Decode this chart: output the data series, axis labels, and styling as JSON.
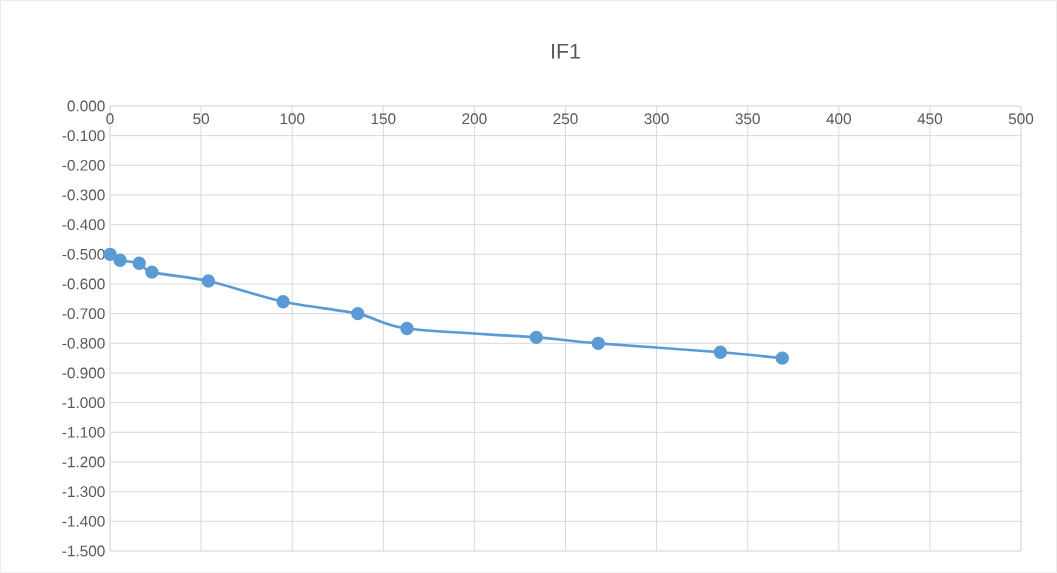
{
  "chart_data": {
    "type": "line",
    "title": "IF1",
    "x": [
      0,
      5.5,
      16,
      23,
      54,
      95,
      136,
      163,
      234,
      268,
      335,
      369
    ],
    "series": [
      {
        "color": "#5b9bd5",
        "values": [
          -0.5,
          -0.52,
          -0.53,
          -0.56,
          -0.59,
          -0.66,
          -0.7,
          -0.75,
          -0.78,
          -0.8,
          -0.83,
          -0.85
        ]
      }
    ],
    "xlim": [
      0,
      500
    ],
    "xticks": [
      0,
      50,
      100,
      150,
      200,
      250,
      300,
      350,
      400,
      450,
      500
    ],
    "ylim": [
      -1.5,
      0
    ],
    "yticks": [
      {
        "value": 0,
        "label": "0.000"
      },
      {
        "value": -0.1,
        "label": "-0.100"
      },
      {
        "value": -0.2,
        "label": "-0.200"
      },
      {
        "value": -0.3,
        "label": "-0.300"
      },
      {
        "value": -0.4,
        "label": "-0.400"
      },
      {
        "value": -0.5,
        "label": "-0.500"
      },
      {
        "value": -0.6,
        "label": "-0.600"
      },
      {
        "value": -0.7,
        "label": "-0.700"
      },
      {
        "value": -0.8,
        "label": "-0.800"
      },
      {
        "value": -0.9,
        "label": "-0.900"
      },
      {
        "value": -1.0,
        "label": "-1.000"
      },
      {
        "value": -1.1,
        "label": "-1.100"
      },
      {
        "value": -1.2,
        "label": "-1.200"
      },
      {
        "value": -1.3,
        "label": "-1.300"
      },
      {
        "value": -1.4,
        "label": "-1.400"
      },
      {
        "value": -1.5,
        "label": "-1.500"
      }
    ],
    "grid": true,
    "marker": "circle"
  }
}
